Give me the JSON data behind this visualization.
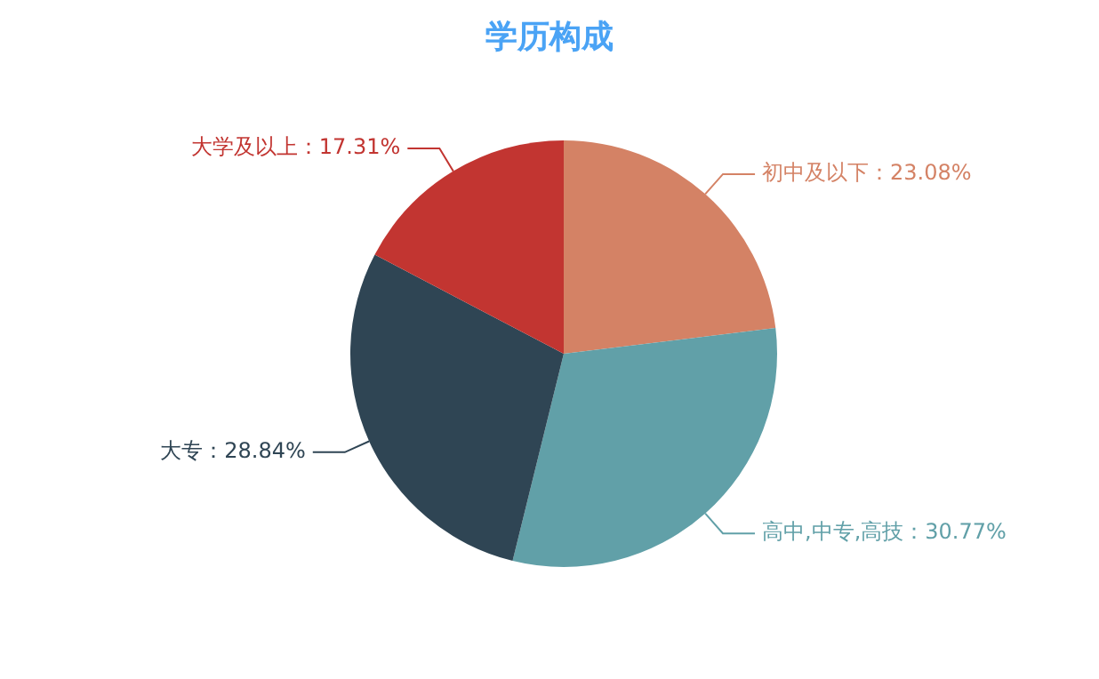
{
  "chart_data": {
    "type": "pie",
    "title": "学历构成",
    "categories": [
      "初中及以下",
      "高中,中专,高技",
      "大专",
      "大学及以上"
    ],
    "values": [
      23.08,
      30.77,
      28.84,
      17.31
    ],
    "value_labels": [
      "23.08%",
      "30.77%",
      "28.84%",
      "17.31%"
    ],
    "colors": [
      "#d48265",
      "#61a0a8",
      "#2f4554",
      "#c23531"
    ],
    "legend": false
  }
}
